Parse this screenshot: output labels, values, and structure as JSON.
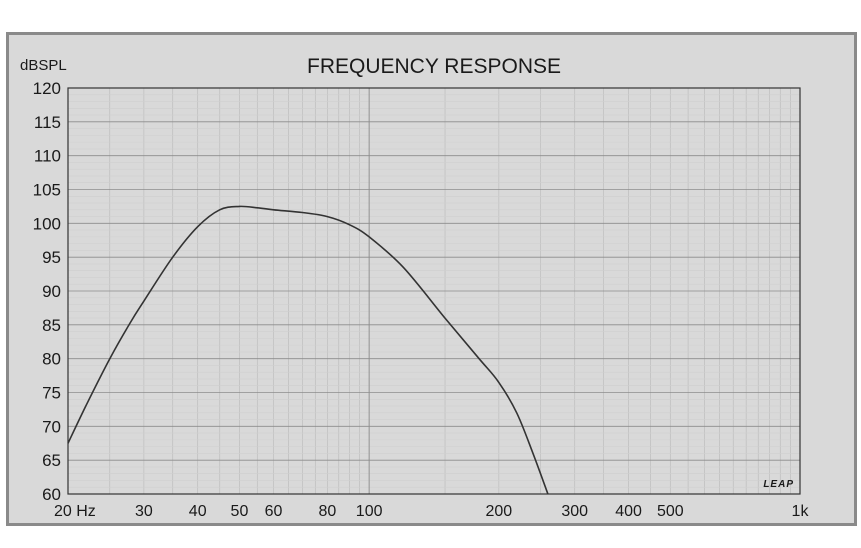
{
  "chart_data": {
    "type": "line",
    "title": "FREQUENCY RESPONSE",
    "ylabel": "dBSPL",
    "xlabel": "",
    "x_scale": "log",
    "xlim": [
      20,
      1000
    ],
    "ylim": [
      60,
      120
    ],
    "grid": true,
    "y_ticks": [
      60,
      65,
      70,
      75,
      80,
      85,
      90,
      95,
      100,
      105,
      110,
      115,
      120
    ],
    "x_tick_values": [
      20,
      30,
      40,
      50,
      60,
      80,
      100,
      200,
      300,
      400,
      500,
      1000
    ],
    "x_tick_labels": [
      "20 Hz",
      "30",
      "40",
      "50",
      "60",
      "80",
      "100",
      "200",
      "300",
      "400",
      "500",
      "1k"
    ],
    "watermark": "LEAP",
    "series": [
      {
        "x": [
          20,
          22,
          25,
          28,
          30,
          35,
          40,
          45,
          50,
          55,
          60,
          70,
          80,
          90,
          100,
          120,
          150,
          180,
          200,
          220,
          240,
          260
        ],
        "y": [
          67.5,
          73,
          80,
          85.5,
          88.5,
          95,
          99.5,
          102,
          102.5,
          102.3,
          102,
          101.6,
          101,
          99.8,
          98,
          93.5,
          86,
          80,
          76.5,
          72,
          66,
          60
        ]
      }
    ]
  }
}
